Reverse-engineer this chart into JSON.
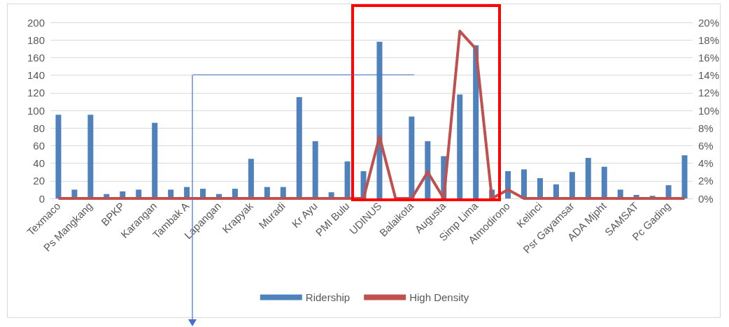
{
  "chart_data": {
    "type": "bar",
    "categories": [
      "Texmaco",
      null,
      "Ps Mangkang",
      null,
      "BPKP",
      null,
      "Karangan",
      null,
      "Tambak A",
      null,
      "Lapangan",
      null,
      "Krapyak",
      null,
      "Muradi",
      null,
      "Kr Ayu",
      null,
      "PMI Bulu",
      null,
      "UDINUS",
      null,
      "Balaikota",
      null,
      "Augusta",
      null,
      "Simp Lima",
      null,
      "Atmodirono",
      null,
      "Kelinci",
      null,
      "Psr Gayamsar",
      null,
      "ADA Mjpht",
      null,
      "SAMSAT",
      null,
      "Pc Gading",
      null
    ],
    "series": [
      {
        "name": "Ridership",
        "color": "#4f81bd",
        "values": [
          95,
          10,
          95,
          5,
          8,
          10,
          86,
          10,
          13,
          11,
          5,
          11,
          45,
          13,
          13,
          115,
          65,
          7,
          42,
          31,
          178,
          0,
          93,
          65,
          48,
          118,
          174,
          10,
          31,
          33,
          23,
          16,
          30,
          46,
          36,
          10,
          4,
          3,
          15,
          49
        ]
      },
      {
        "name": "High Density",
        "type": "line",
        "axis": "y2",
        "color": "#c0504d",
        "values": [
          0,
          0,
          0,
          0,
          0,
          0,
          0,
          0,
          0,
          0,
          0,
          0,
          0,
          0,
          0,
          0,
          0,
          0,
          0,
          0,
          7,
          0,
          0,
          3,
          0,
          19,
          17,
          0,
          1,
          0,
          0,
          0,
          0,
          0,
          0,
          0,
          0,
          0,
          0,
          0
        ]
      }
    ],
    "ylim": [
      0,
      200
    ],
    "yticks": [
      0,
      20,
      40,
      60,
      80,
      100,
      120,
      140,
      160,
      180,
      200
    ],
    "y2lim": [
      0,
      20
    ],
    "y2ticks": [
      {
        "value": 0,
        "label": "0%"
      },
      {
        "value": 2,
        "label": "2%"
      },
      {
        "value": 4,
        "label": "4%"
      },
      {
        "value": 6,
        "label": "6%"
      },
      {
        "value": 8,
        "label": "8%"
      },
      {
        "value": 10,
        "label": "10%"
      },
      {
        "value": 12,
        "label": "12%"
      },
      {
        "value": 14,
        "label": "14%"
      },
      {
        "value": 16,
        "label": "16%"
      },
      {
        "value": 18,
        "label": "18%"
      },
      {
        "value": 20,
        "label": "20%"
      }
    ],
    "grid": "y",
    "legend": "bottom",
    "marker": "none",
    "line_style": "solid"
  }
}
